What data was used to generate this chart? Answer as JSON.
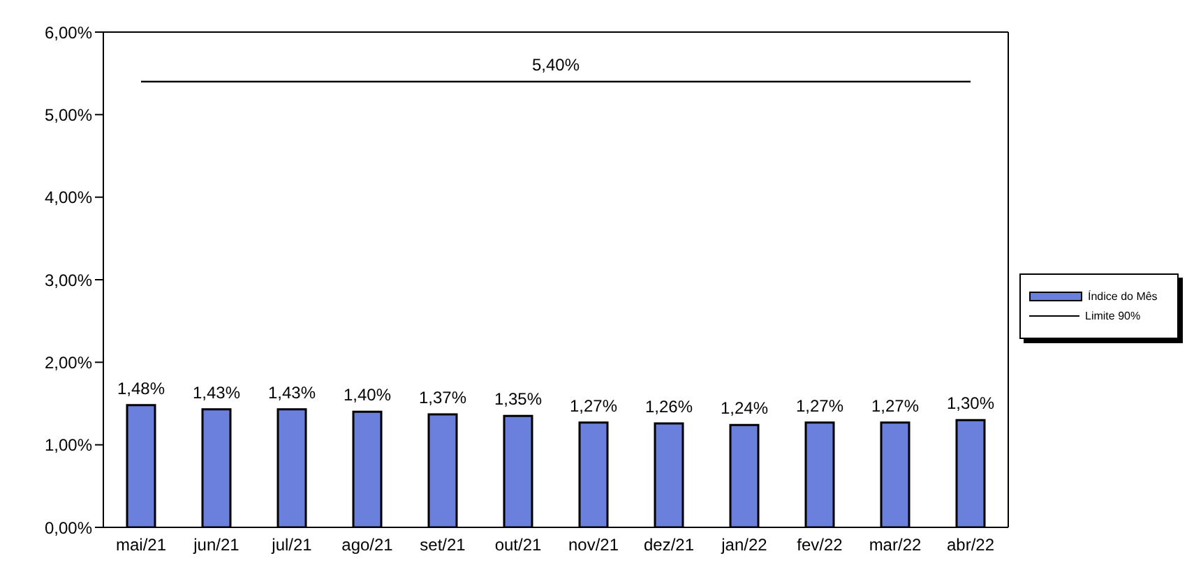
{
  "chart_data": {
    "type": "bar",
    "categories": [
      "mai/21",
      "jun/21",
      "jul/21",
      "ago/21",
      "set/21",
      "out/21",
      "nov/21",
      "dez/21",
      "jan/22",
      "fev/22",
      "mar/22",
      "abr/22"
    ],
    "series": [
      {
        "name": "Índice do Mês",
        "color": "#6b7fdc",
        "values": [
          1.48,
          1.43,
          1.43,
          1.4,
          1.37,
          1.35,
          1.27,
          1.26,
          1.24,
          1.27,
          1.27,
          1.3
        ],
        "value_labels": [
          "1,48%",
          "1,43%",
          "1,43%",
          "1,40%",
          "1,37%",
          "1,35%",
          "1,27%",
          "1,26%",
          "1,24%",
          "1,27%",
          "1,27%",
          "1,30%"
        ]
      },
      {
        "name": "Limite 90%",
        "type": "line",
        "color": "#000000",
        "values": [
          5.4,
          5.4,
          5.4,
          5.4,
          5.4,
          5.4,
          5.4,
          5.4,
          5.4,
          5.4,
          5.4,
          5.4
        ]
      }
    ],
    "annotations": [
      {
        "text": "5,40%",
        "y": 5.4
      }
    ],
    "ylim": [
      0,
      6
    ],
    "yticks": [
      {
        "value": 0,
        "label": "0,00%"
      },
      {
        "value": 1,
        "label": "1,00%"
      },
      {
        "value": 2,
        "label": "2,00%"
      },
      {
        "value": 3,
        "label": "3,00%"
      },
      {
        "value": 4,
        "label": "4,00%"
      },
      {
        "value": 5,
        "label": "5,00%"
      },
      {
        "value": 6,
        "label": "6,00%"
      }
    ],
    "marker": "none",
    "grid": false,
    "legend": "right"
  }
}
